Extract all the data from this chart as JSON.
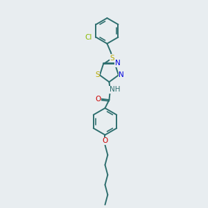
{
  "bg_color": "#e8edf0",
  "bond_color": "#2d6e6e",
  "S_color": "#b8a800",
  "N_color": "#0000dd",
  "O_color": "#cc0000",
  "Cl_color": "#88bb00",
  "lw": 1.4,
  "fs": 7.5,
  "xlim": [
    0,
    10
  ],
  "ylim": [
    0,
    10
  ]
}
